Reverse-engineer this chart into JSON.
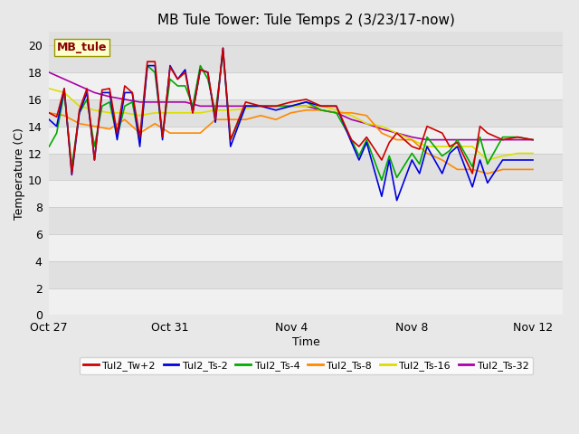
{
  "title": "MB Tule Tower: Tule Temps 2 (3/23/17-now)",
  "xlabel": "Time",
  "ylabel": "Temperature (C)",
  "legend_label": "MB_tule",
  "ylim": [
    0,
    21
  ],
  "yticks": [
    0,
    2,
    4,
    6,
    8,
    10,
    12,
    14,
    16,
    18,
    20
  ],
  "xtick_labels": [
    "Oct 27",
    "Oct 31",
    "Nov 4",
    "Nov 8",
    "Nov 12"
  ],
  "xtick_positions": [
    0,
    4,
    8,
    12,
    16
  ],
  "xlim": [
    0,
    17.0
  ],
  "series": {
    "Tul2_Tw+2": {
      "color": "#cc0000",
      "points": [
        [
          0.0,
          15.0
        ],
        [
          0.25,
          14.7
        ],
        [
          0.5,
          16.8
        ],
        [
          0.75,
          10.5
        ],
        [
          1.0,
          15.2
        ],
        [
          1.25,
          16.8
        ],
        [
          1.5,
          11.5
        ],
        [
          1.75,
          16.7
        ],
        [
          2.0,
          16.8
        ],
        [
          2.25,
          13.5
        ],
        [
          2.5,
          17.0
        ],
        [
          2.75,
          16.5
        ],
        [
          3.0,
          13.2
        ],
        [
          3.25,
          18.8
        ],
        [
          3.5,
          18.8
        ],
        [
          3.75,
          13.2
        ],
        [
          4.0,
          18.4
        ],
        [
          4.25,
          17.5
        ],
        [
          4.5,
          18.0
        ],
        [
          4.75,
          15.0
        ],
        [
          5.0,
          18.2
        ],
        [
          5.25,
          18.0
        ],
        [
          5.5,
          14.5
        ],
        [
          5.75,
          19.8
        ],
        [
          6.0,
          13.0
        ],
        [
          6.5,
          15.8
        ],
        [
          7.0,
          15.5
        ],
        [
          7.5,
          15.5
        ],
        [
          8.0,
          15.8
        ],
        [
          8.5,
          16.0
        ],
        [
          9.0,
          15.5
        ],
        [
          9.5,
          15.5
        ],
        [
          10.0,
          13.0
        ],
        [
          10.25,
          12.5
        ],
        [
          10.5,
          13.2
        ],
        [
          11.0,
          11.5
        ],
        [
          11.25,
          12.8
        ],
        [
          11.5,
          13.5
        ],
        [
          12.0,
          12.5
        ],
        [
          12.25,
          12.3
        ],
        [
          12.5,
          14.0
        ],
        [
          13.0,
          13.5
        ],
        [
          13.25,
          12.5
        ],
        [
          13.5,
          12.8
        ],
        [
          14.0,
          10.5
        ],
        [
          14.25,
          14.0
        ],
        [
          14.5,
          13.5
        ],
        [
          15.0,
          13.0
        ],
        [
          15.5,
          13.2
        ],
        [
          16.0,
          13.0
        ]
      ]
    },
    "Tul2_Ts-2": {
      "color": "#0000dd",
      "points": [
        [
          0.0,
          14.5
        ],
        [
          0.25,
          14.0
        ],
        [
          0.5,
          16.8
        ],
        [
          0.75,
          10.4
        ],
        [
          1.0,
          15.0
        ],
        [
          1.25,
          16.5
        ],
        [
          1.5,
          11.5
        ],
        [
          1.75,
          16.5
        ],
        [
          2.0,
          16.5
        ],
        [
          2.25,
          13.0
        ],
        [
          2.5,
          16.5
        ],
        [
          2.75,
          16.5
        ],
        [
          3.0,
          12.5
        ],
        [
          3.25,
          18.5
        ],
        [
          3.5,
          18.5
        ],
        [
          3.75,
          13.0
        ],
        [
          4.0,
          18.5
        ],
        [
          4.25,
          17.5
        ],
        [
          4.5,
          18.2
        ],
        [
          4.75,
          15.0
        ],
        [
          5.0,
          18.2
        ],
        [
          5.25,
          18.0
        ],
        [
          5.5,
          14.3
        ],
        [
          5.75,
          19.8
        ],
        [
          6.0,
          12.5
        ],
        [
          6.5,
          15.5
        ],
        [
          7.0,
          15.5
        ],
        [
          7.5,
          15.2
        ],
        [
          8.0,
          15.5
        ],
        [
          8.5,
          15.8
        ],
        [
          9.0,
          15.5
        ],
        [
          9.5,
          15.5
        ],
        [
          10.0,
          12.8
        ],
        [
          10.25,
          11.5
        ],
        [
          10.5,
          12.8
        ],
        [
          11.0,
          8.8
        ],
        [
          11.25,
          11.5
        ],
        [
          11.5,
          8.5
        ],
        [
          12.0,
          11.5
        ],
        [
          12.25,
          10.5
        ],
        [
          12.5,
          12.5
        ],
        [
          13.0,
          10.5
        ],
        [
          13.25,
          12.0
        ],
        [
          13.5,
          12.5
        ],
        [
          14.0,
          9.5
        ],
        [
          14.25,
          11.5
        ],
        [
          14.5,
          9.8
        ],
        [
          15.0,
          11.5
        ],
        [
          15.5,
          11.5
        ],
        [
          16.0,
          11.5
        ]
      ]
    },
    "Tul2_Ts-4": {
      "color": "#00aa00",
      "points": [
        [
          0.0,
          12.5
        ],
        [
          0.25,
          13.5
        ],
        [
          0.5,
          16.5
        ],
        [
          0.75,
          11.0
        ],
        [
          1.0,
          15.0
        ],
        [
          1.25,
          16.0
        ],
        [
          1.5,
          12.5
        ],
        [
          1.75,
          15.5
        ],
        [
          2.0,
          15.8
        ],
        [
          2.25,
          13.2
        ],
        [
          2.5,
          15.5
        ],
        [
          2.75,
          15.8
        ],
        [
          3.0,
          12.8
        ],
        [
          3.25,
          18.5
        ],
        [
          3.5,
          18.0
        ],
        [
          3.75,
          13.3
        ],
        [
          4.0,
          17.5
        ],
        [
          4.25,
          17.0
        ],
        [
          4.5,
          17.0
        ],
        [
          4.75,
          15.5
        ],
        [
          5.0,
          18.5
        ],
        [
          5.25,
          17.5
        ],
        [
          5.5,
          15.0
        ],
        [
          5.75,
          19.5
        ],
        [
          6.0,
          13.0
        ],
        [
          6.5,
          15.5
        ],
        [
          7.0,
          15.5
        ],
        [
          7.5,
          15.5
        ],
        [
          8.0,
          15.5
        ],
        [
          8.5,
          15.8
        ],
        [
          9.0,
          15.2
        ],
        [
          9.5,
          15.0
        ],
        [
          10.0,
          13.0
        ],
        [
          10.25,
          11.8
        ],
        [
          10.5,
          13.0
        ],
        [
          11.0,
          10.0
        ],
        [
          11.25,
          11.8
        ],
        [
          11.5,
          10.2
        ],
        [
          12.0,
          12.0
        ],
        [
          12.25,
          11.2
        ],
        [
          12.5,
          13.2
        ],
        [
          13.0,
          11.8
        ],
        [
          13.25,
          12.2
        ],
        [
          13.5,
          13.0
        ],
        [
          14.0,
          11.0
        ],
        [
          14.25,
          13.2
        ],
        [
          14.5,
          11.2
        ],
        [
          15.0,
          13.2
        ],
        [
          15.5,
          13.2
        ],
        [
          16.0,
          13.0
        ]
      ]
    },
    "Tul2_Ts-8": {
      "color": "#ff8800",
      "points": [
        [
          0.0,
          15.0
        ],
        [
          0.5,
          14.8
        ],
        [
          1.0,
          14.2
        ],
        [
          1.5,
          14.0
        ],
        [
          2.0,
          13.8
        ],
        [
          2.5,
          14.5
        ],
        [
          3.0,
          13.5
        ],
        [
          3.5,
          14.2
        ],
        [
          4.0,
          13.5
        ],
        [
          4.5,
          13.5
        ],
        [
          5.0,
          13.5
        ],
        [
          5.5,
          14.5
        ],
        [
          6.0,
          14.5
        ],
        [
          6.5,
          14.5
        ],
        [
          7.0,
          14.8
        ],
        [
          7.5,
          14.5
        ],
        [
          8.0,
          15.0
        ],
        [
          8.5,
          15.2
        ],
        [
          9.0,
          15.2
        ],
        [
          9.5,
          15.0
        ],
        [
          10.0,
          15.0
        ],
        [
          10.5,
          14.8
        ],
        [
          11.0,
          13.5
        ],
        [
          11.5,
          13.0
        ],
        [
          12.0,
          13.0
        ],
        [
          12.5,
          12.0
        ],
        [
          13.0,
          11.5
        ],
        [
          13.5,
          10.8
        ],
        [
          14.0,
          10.8
        ],
        [
          14.5,
          10.5
        ],
        [
          15.0,
          10.8
        ],
        [
          15.5,
          10.8
        ],
        [
          16.0,
          10.8
        ]
      ]
    },
    "Tul2_Ts-16": {
      "color": "#dddd00",
      "points": [
        [
          0.0,
          16.8
        ],
        [
          0.5,
          16.5
        ],
        [
          1.0,
          15.5
        ],
        [
          1.5,
          15.2
        ],
        [
          2.0,
          15.0
        ],
        [
          2.5,
          15.0
        ],
        [
          3.0,
          14.8
        ],
        [
          3.5,
          15.0
        ],
        [
          4.0,
          15.0
        ],
        [
          4.5,
          15.0
        ],
        [
          5.0,
          15.0
        ],
        [
          5.5,
          15.2
        ],
        [
          6.0,
          15.2
        ],
        [
          6.5,
          15.3
        ],
        [
          7.0,
          15.5
        ],
        [
          7.5,
          15.5
        ],
        [
          8.0,
          15.5
        ],
        [
          8.5,
          15.5
        ],
        [
          9.0,
          15.5
        ],
        [
          9.5,
          15.2
        ],
        [
          10.0,
          14.8
        ],
        [
          10.5,
          14.2
        ],
        [
          11.0,
          14.0
        ],
        [
          11.5,
          13.5
        ],
        [
          12.0,
          13.0
        ],
        [
          12.5,
          12.5
        ],
        [
          13.0,
          12.5
        ],
        [
          13.5,
          12.5
        ],
        [
          14.0,
          12.5
        ],
        [
          14.5,
          11.5
        ],
        [
          15.0,
          11.8
        ],
        [
          15.5,
          12.0
        ],
        [
          16.0,
          12.0
        ]
      ]
    },
    "Tul2_Ts-32": {
      "color": "#aa00aa",
      "points": [
        [
          0.0,
          18.0
        ],
        [
          0.5,
          17.5
        ],
        [
          1.0,
          17.0
        ],
        [
          1.5,
          16.5
        ],
        [
          2.0,
          16.2
        ],
        [
          2.5,
          16.0
        ],
        [
          3.0,
          15.8
        ],
        [
          3.5,
          15.8
        ],
        [
          4.0,
          15.8
        ],
        [
          4.5,
          15.8
        ],
        [
          5.0,
          15.5
        ],
        [
          5.5,
          15.5
        ],
        [
          6.0,
          15.5
        ],
        [
          6.5,
          15.5
        ],
        [
          7.0,
          15.5
        ],
        [
          7.5,
          15.5
        ],
        [
          8.0,
          15.5
        ],
        [
          8.5,
          15.5
        ],
        [
          9.0,
          15.2
        ],
        [
          9.5,
          15.0
        ],
        [
          10.0,
          14.5
        ],
        [
          10.5,
          14.2
        ],
        [
          11.0,
          13.8
        ],
        [
          11.5,
          13.5
        ],
        [
          12.0,
          13.2
        ],
        [
          12.5,
          13.0
        ],
        [
          13.0,
          13.0
        ],
        [
          13.5,
          13.0
        ],
        [
          14.0,
          13.0
        ],
        [
          14.5,
          13.0
        ],
        [
          15.0,
          13.0
        ],
        [
          15.5,
          13.0
        ],
        [
          16.0,
          13.0
        ]
      ]
    }
  },
  "bg_color": "#e8e8e8",
  "plot_bg_color_light": "#f0f0f0",
  "plot_bg_color_dark": "#e0e0e0",
  "title_fontsize": 11,
  "axis_fontsize": 9,
  "tick_fontsize": 9,
  "legend_box_color": "#ffffcc",
  "legend_box_edge": "#999900",
  "legend_text_color": "#880000"
}
